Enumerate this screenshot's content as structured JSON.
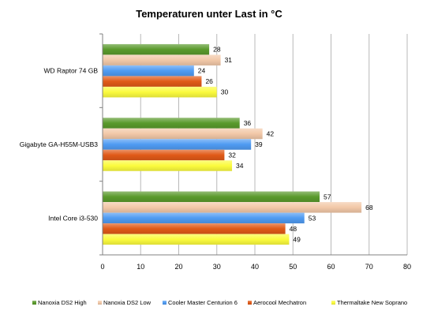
{
  "chart_data": {
    "type": "bar",
    "orientation": "horizontal",
    "title": "Temperaturen unter Last in °C",
    "xlabel": "",
    "ylabel": "",
    "xlim": [
      0,
      80
    ],
    "ticks": [
      0,
      10,
      20,
      30,
      40,
      50,
      60,
      70,
      80
    ],
    "grid": true,
    "legend_position": "bottom",
    "categories": [
      "WD Raptor 74 GB",
      "Gigabyte GA-H55M-USB3",
      "Intel Core i3-530"
    ],
    "series": [
      {
        "name": "Nanoxia DS2 High",
        "color": "#5a9a2c",
        "values": [
          28,
          36,
          57
        ]
      },
      {
        "name": "Nanoxia DS2 Low",
        "color": "#f2c8a8",
        "values": [
          31,
          42,
          68
        ]
      },
      {
        "name": "Cooler Master Centurion 6",
        "color": "#4f9bf2",
        "values": [
          24,
          39,
          53
        ]
      },
      {
        "name": "Aerocool Mechatron",
        "color": "#e05a18",
        "values": [
          26,
          32,
          48
        ]
      },
      {
        "name": "Thermaltake New Soprano",
        "color": "#fbfb3e",
        "values": [
          30,
          34,
          49
        ]
      }
    ]
  }
}
